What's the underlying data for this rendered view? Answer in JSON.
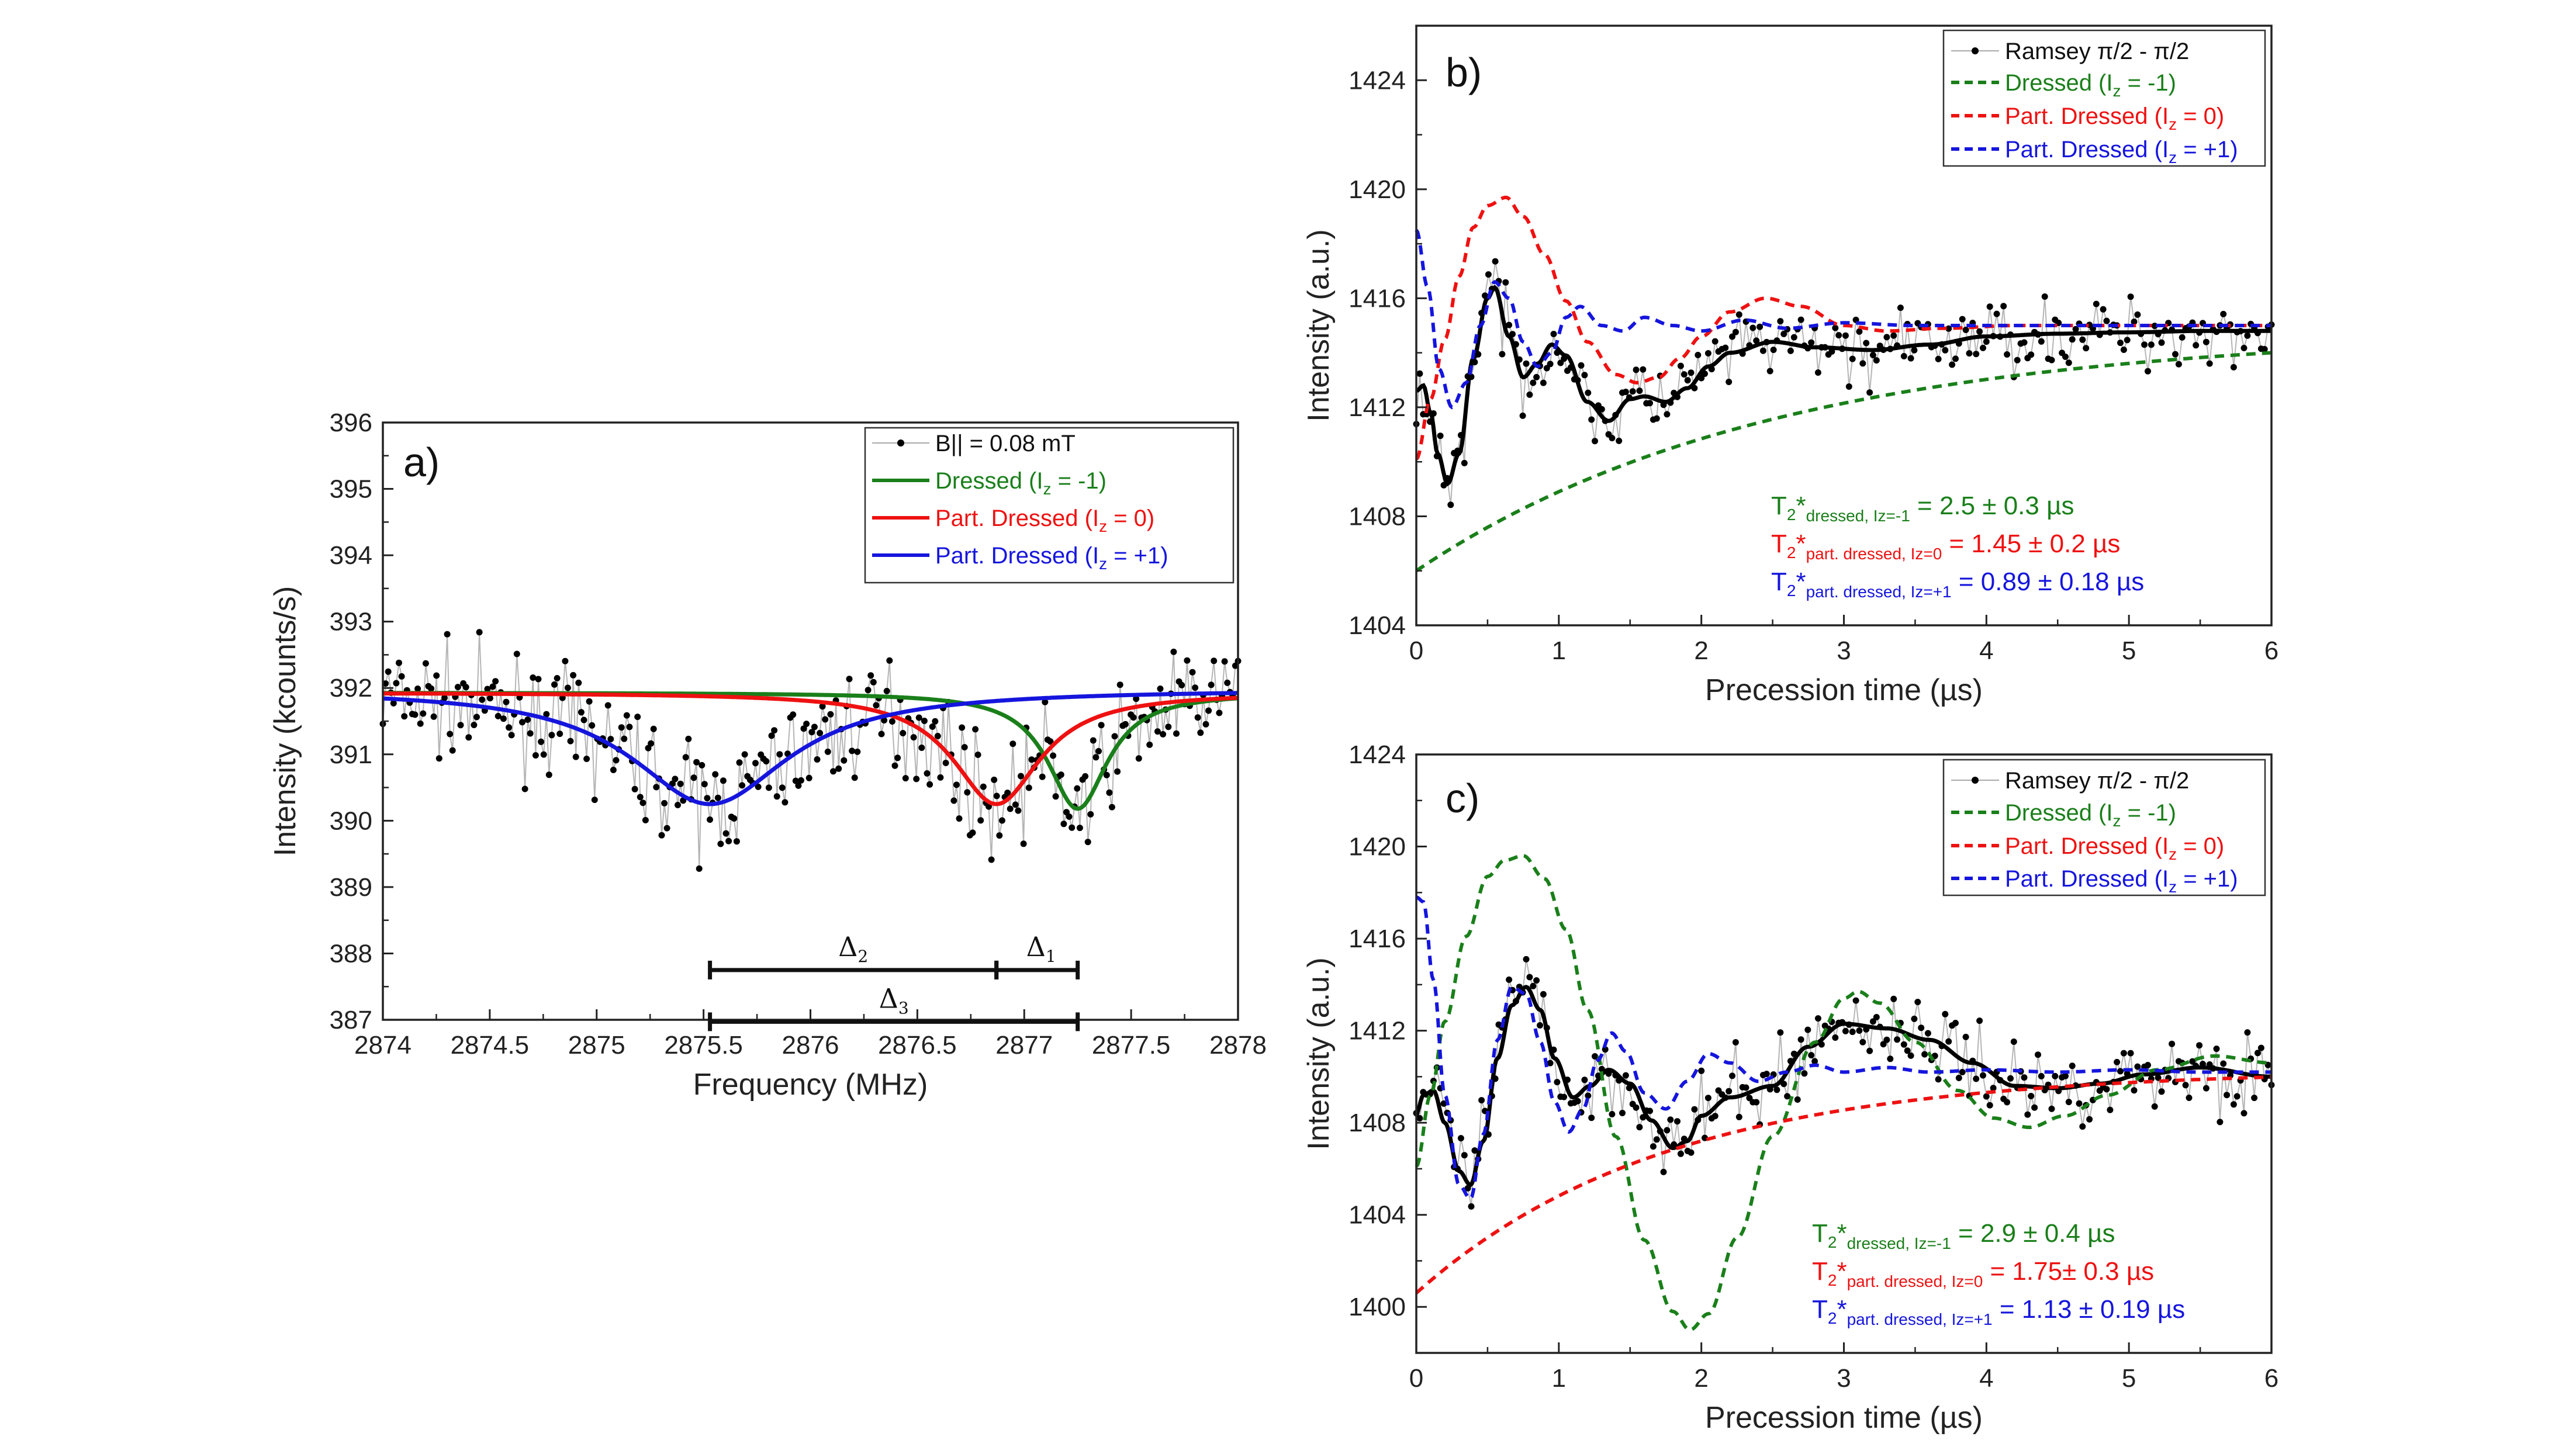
{
  "chart_data": [
    {
      "panel": "a)",
      "type": "line",
      "xlabel": "Frequency (MHz)",
      "ylabel": "Intensity (kcounts/s)",
      "xlim": [
        2874,
        2878
      ],
      "ylim": [
        387,
        396
      ],
      "xticks": [
        "2874",
        "2874.5",
        "2875",
        "2875.5",
        "2876",
        "2876.5",
        "2877",
        "2877.5",
        "2878"
      ],
      "yticks": [
        "387",
        "388",
        "389",
        "390",
        "391",
        "392",
        "393",
        "394",
        "395",
        "396"
      ],
      "legend": {
        "position": "top-right",
        "entries": [
          {
            "label": "B|| = 0.08 mT",
            "color": "#000000",
            "style": "markers-line"
          },
          {
            "label": "Dressed (I",
            "sub": "z",
            "suffix": " = -1)",
            "color": "#1a7f1a",
            "style": "solid"
          },
          {
            "label": "Part. Dressed (I",
            "sub": "z",
            "suffix": " = 0)",
            "color": "#ee1111",
            "style": "solid"
          },
          {
            "label": "Part. Dressed (I",
            "sub": "z",
            "suffix": " = +1)",
            "color": "#1515dd",
            "style": "solid"
          }
        ]
      },
      "data_series": {
        "name": "B|| = 0.08 mT",
        "x_range": [
          2874.0,
          2878.0
        ],
        "n_points": 320,
        "baseline": 391.9,
        "noise": 0.55
      },
      "fit_curves": [
        {
          "name": "Dressed (Iz = -1)",
          "type": "lorentzian",
          "baseline": 391.93,
          "center": 2877.25,
          "depth": 1.75,
          "hwhm": 0.17,
          "color": "#1a7f1a"
        },
        {
          "name": "Part. Dressed (Iz = 0)",
          "type": "lorentzian",
          "baseline": 391.93,
          "center": 2876.87,
          "depth": 1.68,
          "hwhm": 0.25,
          "color": "#ee1111"
        },
        {
          "name": "Part. Dressed (Iz = +1)",
          "type": "lorentzian",
          "baseline": 391.98,
          "center": 2875.53,
          "depth": 1.73,
          "hwhm": 0.45,
          "color": "#1515dd"
        }
      ],
      "intervals": [
        {
          "label": "Δ",
          "sub": "2",
          "from": 2875.53,
          "to": 2876.87,
          "y": 387.75
        },
        {
          "label": "Δ",
          "sub": "1",
          "from": 2876.87,
          "to": 2877.25,
          "y": 387.75
        },
        {
          "label": "Δ",
          "sub": "3",
          "from": 2875.53,
          "to": 2877.25,
          "y": 386.97
        }
      ]
    },
    {
      "panel": "b)",
      "type": "line",
      "xlabel": "Precession time (µs)",
      "ylabel": "Intensity (a.u.)",
      "xlim": [
        0,
        6
      ],
      "ylim": [
        1404,
        1426
      ],
      "xticks": [
        "0",
        "1",
        "2",
        "3",
        "4",
        "5",
        "6"
      ],
      "yticks": [
        "1404",
        "1408",
        "1412",
        "1416",
        "1420",
        "1424"
      ],
      "legend": {
        "position": "top-right",
        "entries": [
          {
            "label": "Ramsey π/2 - π/2",
            "color": "#000000",
            "style": "markers-line"
          },
          {
            "label": "Dressed (I",
            "sub": "z",
            "suffix": " = -1)",
            "color": "#1a7f1a",
            "style": "dashed"
          },
          {
            "label": "Part. Dressed (I",
            "sub": "z",
            "suffix": " = 0)",
            "color": "#ee1111",
            "style": "dashed"
          },
          {
            "label": "Part. Dressed (I",
            "sub": "z",
            "suffix": " = +1)",
            "color": "#1515dd",
            "style": "dashed"
          }
        ]
      },
      "annotations": [
        {
          "main": "T",
          "s1": "2",
          "star": "*",
          "s2": "dressed, Iz=-1",
          "value": " = 2.5 ± 0.3 µs",
          "color": "#1a7f1a"
        },
        {
          "main": "T",
          "s1": "2",
          "star": "*",
          "s2": "part. dressed, Iz=0",
          "value": " = 1.45 ± 0.2 µs",
          "color": "#ee1111"
        },
        {
          "main": "T",
          "s1": "2",
          "star": "*",
          "s2": "part. dressed, Iz=+1",
          "value": " = 0.89 ± 0.18 µs",
          "color": "#1515dd"
        }
      ],
      "data_series": {
        "name": "Ramsey π/2 - π/2",
        "x_range": [
          0,
          6
        ],
        "n_points": 250,
        "noise": 0.9
      },
      "fit_curves": [
        {
          "name": "Ramsey fit",
          "color": "#000000",
          "x": [
            0,
            0.05,
            0.1,
            0.15,
            0.22,
            0.3,
            0.4,
            0.5,
            0.55,
            0.65,
            0.75,
            0.85,
            0.95,
            1.05,
            1.2,
            1.35,
            1.5,
            1.6,
            1.75,
            1.9,
            2.05,
            2.2,
            2.5,
            2.8,
            3.2,
            3.6,
            4.0,
            4.5,
            5.0,
            5.5,
            6.0
          ],
          "y": [
            1412.6,
            1412.8,
            1411.8,
            1410.3,
            1409.2,
            1410.3,
            1413.8,
            1416.0,
            1416.4,
            1414.6,
            1413.1,
            1413.6,
            1414.3,
            1413.9,
            1412.2,
            1411.5,
            1412.3,
            1412.4,
            1412.2,
            1412.7,
            1413.5,
            1414.0,
            1414.4,
            1414.2,
            1414.1,
            1414.3,
            1414.6,
            1414.7,
            1414.75,
            1414.8,
            1414.8
          ]
        },
        {
          "name": "Dressed (Iz = -1)",
          "color": "#1a7f1a",
          "decay": {
            "A": 8.8,
            "tau": 2.5,
            "C": 1414.8
          }
        },
        {
          "name": "Part. Dressed (Iz = 0)",
          "color": "#ee1111",
          "x": [
            0,
            0.1,
            0.2,
            0.3,
            0.4,
            0.5,
            0.63,
            0.75,
            0.9,
            1.05,
            1.2,
            1.4,
            1.55,
            1.7,
            1.85,
            2.0,
            2.2,
            2.45,
            2.7,
            3.0,
            3.3,
            3.7,
            4.2,
            5.0,
            6.0
          ],
          "y": [
            1410.1,
            1412.3,
            1414.5,
            1416.8,
            1418.6,
            1419.4,
            1419.7,
            1419.0,
            1417.6,
            1415.9,
            1414.4,
            1413.2,
            1412.9,
            1413.1,
            1413.8,
            1414.6,
            1415.5,
            1416.0,
            1415.7,
            1415.0,
            1414.8,
            1414.9,
            1415.0,
            1415.0,
            1415.0
          ]
        },
        {
          "name": "Part. Dressed (Iz = +1)",
          "color": "#1515dd",
          "x": [
            0,
            0.08,
            0.16,
            0.25,
            0.35,
            0.45,
            0.55,
            0.65,
            0.75,
            0.85,
            0.95,
            1.05,
            1.15,
            1.3,
            1.45,
            1.6,
            1.8,
            2.0,
            2.3,
            2.6,
            3.0,
            3.5,
            4.0,
            5.0,
            6.0
          ],
          "y": [
            1418.5,
            1416.4,
            1413.4,
            1412.0,
            1412.9,
            1415.0,
            1416.6,
            1416.0,
            1414.4,
            1413.5,
            1414.0,
            1415.3,
            1415.7,
            1415.0,
            1414.8,
            1415.3,
            1415.0,
            1414.8,
            1415.2,
            1414.9,
            1415.1,
            1415.0,
            1415.0,
            1415.0,
            1415.0
          ]
        }
      ]
    },
    {
      "panel": "c)",
      "type": "line",
      "xlabel": "Precession time (µs)",
      "ylabel": "Intensity (a.u.)",
      "xlim": [
        0,
        6
      ],
      "ylim": [
        1398,
        1424
      ],
      "xticks": [
        "0",
        "1",
        "2",
        "3",
        "4",
        "5",
        "6"
      ],
      "yticks": [
        "1400",
        "1404",
        "1408",
        "1412",
        "1416",
        "1420",
        "1424"
      ],
      "legend": {
        "position": "top-right",
        "entries": [
          {
            "label": "Ramsey π/2 - π/2",
            "color": "#000000",
            "style": "markers-line"
          },
          {
            "label": "Dressed (I",
            "sub": "z",
            "suffix": " = -1)",
            "color": "#1a7f1a",
            "style": "dashed"
          },
          {
            "label": "Part. Dressed (I",
            "sub": "z",
            "suffix": " = 0)",
            "color": "#ee1111",
            "style": "dashed"
          },
          {
            "label": "Part. Dressed (I",
            "sub": "z",
            "suffix": " = +1)",
            "color": "#1515dd",
            "style": "dashed"
          }
        ]
      },
      "annotations": [
        {
          "main": "T",
          "s1": "2",
          "star": "*",
          "s2": "dressed, Iz=-1",
          "value": " = 2.9 ± 0.4 µs",
          "color": "#1a7f1a"
        },
        {
          "main": "T",
          "s1": "2",
          "star": "*",
          "s2": "part. dressed, Iz=0",
          "value": " = 1.75± 0.3 µs",
          "color": "#ee1111"
        },
        {
          "main": "T",
          "s1": "2",
          "star": "*",
          "s2": "part. dressed, Iz=+1",
          "value": " = 1.13 ± 0.19 µs",
          "color": "#1515dd"
        }
      ],
      "data_series": {
        "name": "Ramsey π/2 - π/2",
        "x_range": [
          0,
          6
        ],
        "n_points": 250,
        "noise": 1.2
      },
      "fit_curves": [
        {
          "name": "Ramsey fit",
          "color": "#000000",
          "x": [
            0,
            0.05,
            0.12,
            0.2,
            0.3,
            0.38,
            0.47,
            0.57,
            0.67,
            0.77,
            0.87,
            0.97,
            1.1,
            1.22,
            1.35,
            1.5,
            1.65,
            1.8,
            1.9,
            2.0,
            2.2,
            2.5,
            2.75,
            3.0,
            3.3,
            3.6,
            3.9,
            4.2,
            4.5,
            4.8,
            5.1,
            5.5,
            6.0
          ],
          "y": [
            1408.4,
            1409.2,
            1409.4,
            1408.0,
            1405.9,
            1405.3,
            1407.2,
            1410.8,
            1413.1,
            1413.9,
            1412.9,
            1410.8,
            1409.1,
            1409.6,
            1410.3,
            1409.7,
            1408.1,
            1406.9,
            1407.2,
            1408.3,
            1409.1,
            1409.6,
            1411.3,
            1412.3,
            1412.1,
            1411.6,
            1410.6,
            1409.6,
            1409.5,
            1409.7,
            1410.1,
            1410.4,
            1410.0
          ]
        },
        {
          "name": "Dressed (Iz = -1)",
          "color": "#1a7f1a",
          "x": [
            0,
            0.1,
            0.2,
            0.35,
            0.5,
            0.62,
            0.75,
            0.9,
            1.05,
            1.2,
            1.4,
            1.6,
            1.8,
            1.92,
            2.05,
            2.25,
            2.5,
            2.8,
            3.0,
            3.1,
            3.25,
            3.5,
            3.8,
            4.05,
            4.3,
            4.55,
            4.85,
            5.2,
            5.6,
            6.0
          ],
          "y": [
            1406.1,
            1409.2,
            1412.4,
            1416.1,
            1418.7,
            1419.4,
            1419.6,
            1418.6,
            1416.4,
            1412.9,
            1407.4,
            1402.9,
            1399.8,
            1399.0,
            1399.7,
            1403.0,
            1407.4,
            1411.5,
            1413.4,
            1413.7,
            1413.2,
            1411.5,
            1409.4,
            1408.2,
            1407.8,
            1408.3,
            1409.2,
            1410.3,
            1410.9,
            1410.6
          ]
        },
        {
          "name": "Part. Dressed (Iz = 0)",
          "color": "#ee1111",
          "decay": {
            "A": 9.7,
            "tau": 1.75,
            "C": 1410.3
          }
        },
        {
          "name": "Part. Dressed (Iz = +1)",
          "color": "#1515dd",
          "x": [
            0,
            0.05,
            0.12,
            0.2,
            0.3,
            0.38,
            0.47,
            0.57,
            0.67,
            0.77,
            0.87,
            0.97,
            1.07,
            1.17,
            1.27,
            1.37,
            1.47,
            1.6,
            1.75,
            1.9,
            2.05,
            2.2,
            2.4,
            2.6,
            2.8,
            3.0,
            3.3,
            3.6,
            4.0,
            4.5,
            5.0,
            5.5,
            6.0
          ],
          "y": [
            1417.8,
            1417.6,
            1414.2,
            1409.2,
            1405.3,
            1404.7,
            1407.5,
            1411.6,
            1413.9,
            1413.6,
            1411.5,
            1408.9,
            1407.6,
            1408.6,
            1410.7,
            1411.9,
            1411.1,
            1409.3,
            1408.6,
            1409.8,
            1411.0,
            1410.6,
            1409.8,
            1410.2,
            1410.5,
            1410.2,
            1410.4,
            1410.2,
            1410.3,
            1410.2,
            1410.3,
            1410.2,
            1410.2
          ]
        }
      ]
    }
  ]
}
